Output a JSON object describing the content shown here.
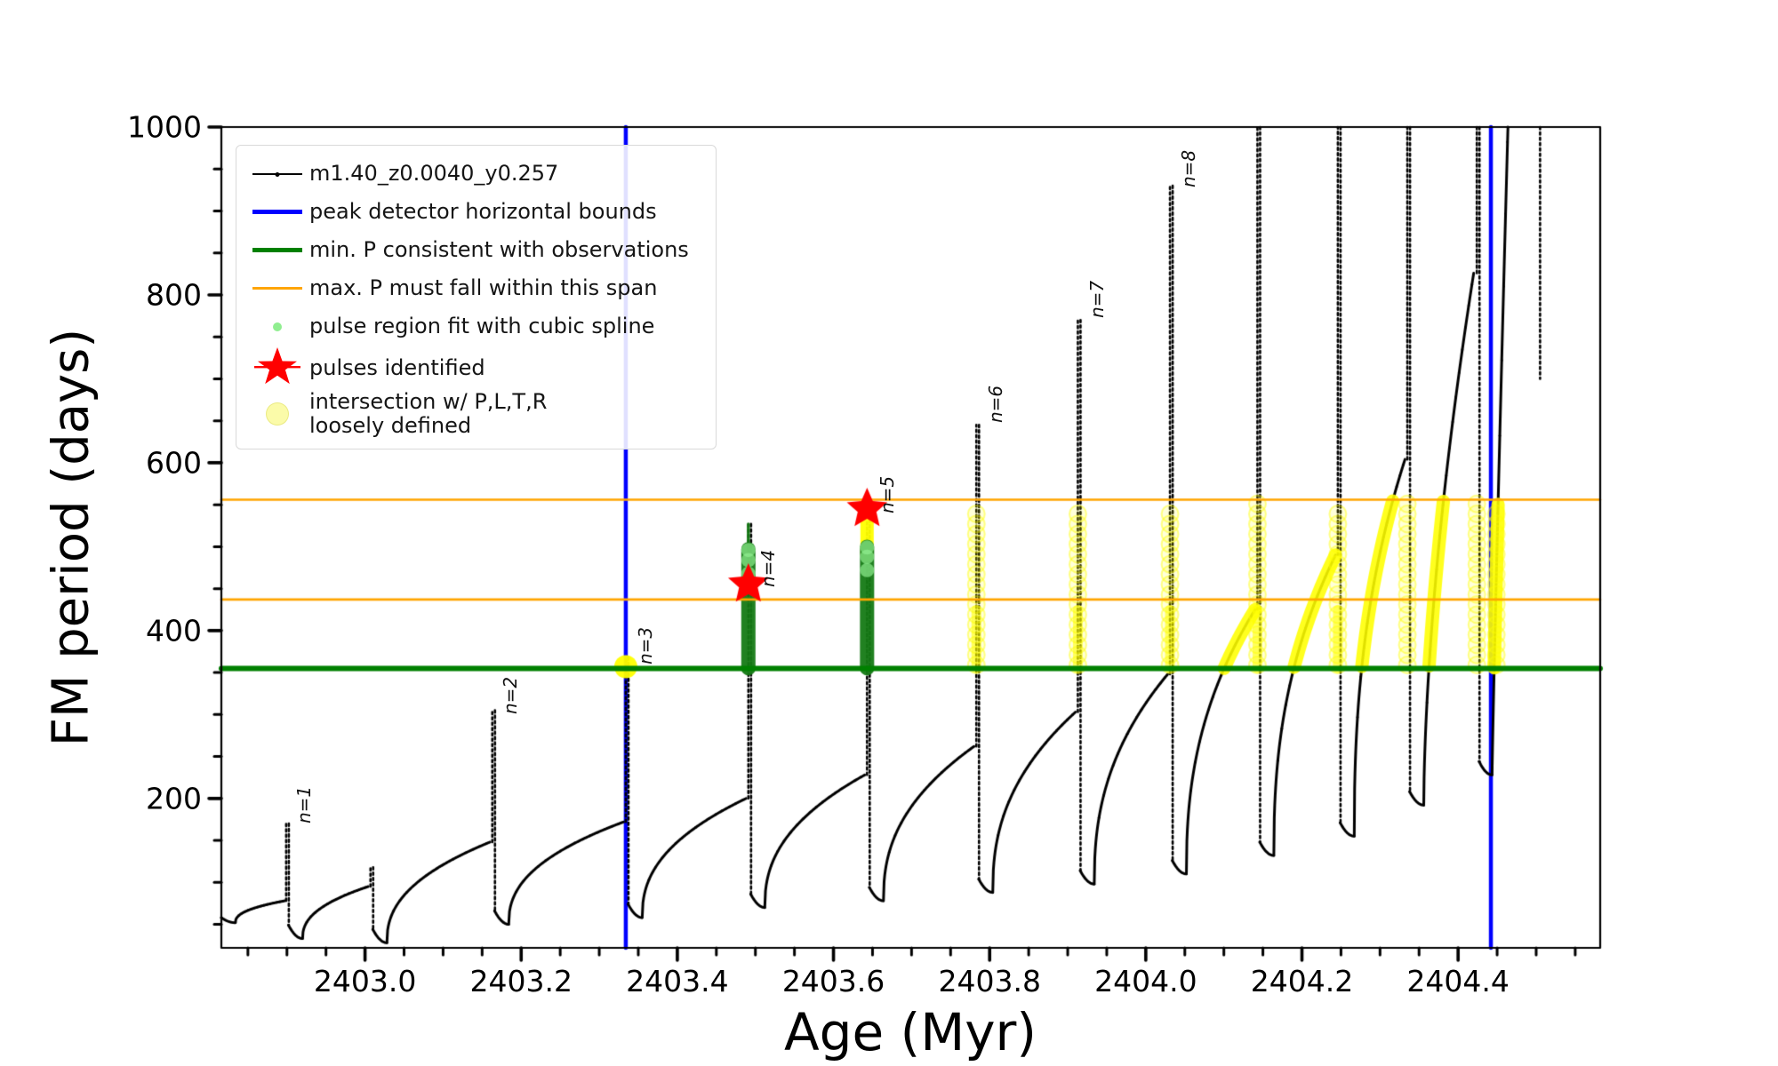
{
  "figure": {
    "background": "#ffffff"
  },
  "axes": {
    "xlabel": "Age (Myr)",
    "ylabel": "FM period (days)",
    "x_tick_labels": [
      "2403.0",
      "2403.2",
      "2403.4",
      "2403.6",
      "2403.8",
      "2404.0",
      "2404.2",
      "2404.4"
    ],
    "y_tick_labels": [
      "200",
      "400",
      "600",
      "800",
      "1000"
    ]
  },
  "legend": {
    "items": [
      {
        "label": "m1.40_z0.0040_y0.257",
        "marker": "black-line-dot"
      },
      {
        "label": "peak detector horizontal bounds",
        "marker": "blue-thick-line"
      },
      {
        "label": "min. P consistent with observations",
        "marker": "green-thick-line"
      },
      {
        "label": "max. P must fall within this span",
        "marker": "orange-thin-line"
      },
      {
        "label": "pulse region fit with cubic spline",
        "marker": "lightgreen-dot"
      },
      {
        "label": "pulses identified",
        "marker": "red-star"
      },
      {
        "label_line1": "intersection w/ P,L,T,R",
        "label_line2": "loosely defined",
        "marker": "yellow-circle"
      }
    ]
  },
  "chart_data": {
    "type": "line",
    "title": "",
    "xlabel": "Age (Myr)",
    "ylabel": "FM period (days)",
    "xlim": [
      2402.816,
      2404.582
    ],
    "ylim": [
      22,
      1000
    ],
    "grid": false,
    "legend_position": "upper left",
    "x_major_ticks": [
      2403.0,
      2403.2,
      2403.4,
      2403.6,
      2403.8,
      2404.0,
      2404.2,
      2404.4
    ],
    "x_minor_step": 0.05,
    "y_major_ticks": [
      200,
      400,
      600,
      800,
      1000
    ],
    "y_minor_step": 50,
    "series_label": "m1.40_z0.0040_y0.257",
    "peak_detector_bounds_x": [
      2403.334,
      2404.442
    ],
    "min_P_consistent_y": 355,
    "max_P_span_y": [
      437,
      556
    ],
    "pulses_identified": [
      {
        "x": 2403.491,
        "y": 455
      },
      {
        "x": 2403.643,
        "y": 545
      }
    ],
    "pulse_labels": [
      {
        "text": "n=1",
        "x": 2402.903,
        "y": 170
      },
      {
        "text": "n=2",
        "x": 2403.167,
        "y": 300
      },
      {
        "text": "n=3",
        "x": 2403.34,
        "y": 360
      },
      {
        "text": "n=4",
        "x": 2403.497,
        "y": 452
      },
      {
        "text": "n=5",
        "x": 2403.649,
        "y": 540
      },
      {
        "text": "n=6",
        "x": 2403.788,
        "y": 648
      },
      {
        "text": "n=7",
        "x": 2403.918,
        "y": 772
      },
      {
        "text": "n=8",
        "x": 2404.036,
        "y": 928
      }
    ],
    "curve_cycles": [
      {
        "min": 52,
        "crest_x": 2402.897,
        "crest": 78,
        "spike_x": 2402.899,
        "peak": 170
      },
      {
        "min": 33,
        "crest_x": 2403.004,
        "crest": 95,
        "spike_x": 2403.007,
        "peak": 118
      },
      {
        "min": 28,
        "crest_x": 2403.16,
        "crest": 148,
        "spike_x": 2403.163,
        "peak": 305
      },
      {
        "min": 50,
        "crest_x": 2403.331,
        "crest": 172,
        "spike_x": 2403.334,
        "peak": 368
      },
      {
        "min": 58,
        "crest_x": 2403.488,
        "crest": 200,
        "spike_x": 2403.491,
        "peak": 527
      },
      {
        "min": 70,
        "crest_x": 2403.64,
        "crest": 228,
        "spike_x": 2403.643,
        "peak": 532
      },
      {
        "min": 78,
        "crest_x": 2403.78,
        "crest": 262,
        "spike_x": 2403.783,
        "peak": 645
      },
      {
        "min": 88,
        "crest_x": 2403.91,
        "crest": 303,
        "spike_x": 2403.913,
        "peak": 770
      },
      {
        "min": 98,
        "crest_x": 2404.028,
        "crest": 348,
        "spike_x": 2404.031,
        "peak": 930
      },
      {
        "min": 110,
        "crest_x": 2404.14,
        "crest": 425,
        "spike_x": 2404.143,
        "peak": 1100,
        "clipped": true,
        "yellow": true
      },
      {
        "min": 132,
        "crest_x": 2404.243,
        "crest": 490,
        "spike_x": 2404.246,
        "peak": 1100,
        "clipped": true,
        "yellow": true
      },
      {
        "min": 155,
        "crest_x": 2404.332,
        "crest": 604,
        "spike_x": 2404.335,
        "peak": 1100,
        "clipped": true,
        "yellow": true
      },
      {
        "min": 192,
        "crest_x": 2404.42,
        "crest": 826,
        "spike_x": 2404.424,
        "peak": 1100,
        "clipped": true,
        "yellow": true,
        "p": 0.6
      },
      {
        "min": 228,
        "crest_x": 2404.482,
        "crest": 1600,
        "no_spike": true,
        "yellow": true,
        "p": 0.9
      },
      {
        "descent_only": true,
        "spike_x": 2404.505,
        "to": 700
      }
    ],
    "spline_fit_columns": [
      {
        "x": 2403.491,
        "y0": 355,
        "y1": 497,
        "thin_top": 527,
        "dots": [
          468,
          484,
          496
        ]
      },
      {
        "x": 2403.643,
        "y0": 355,
        "y1": 500,
        "thin_top": null,
        "dots": [
          472,
          488,
          499
        ]
      }
    ],
    "intersection_columns": [
      {
        "x": 2403.783,
        "y0": 355,
        "y1": 548,
        "bright_base": true
      },
      {
        "x": 2403.913,
        "y0": 355,
        "y1": 545,
        "bright_base": true
      },
      {
        "x": 2404.031,
        "y0": 355,
        "y1": 550,
        "bright_base": true
      },
      {
        "x": 2404.143,
        "y0": 355,
        "y1": 552,
        "bright_base": true
      },
      {
        "x": 2404.246,
        "y0": 355,
        "y1": 548,
        "bright_base": true
      },
      {
        "x": 2404.335,
        "y0": 355,
        "y1": 552,
        "bright_base": false
      },
      {
        "x": 2404.424,
        "y0": 355,
        "y1": 552,
        "bright_base": false
      },
      {
        "x": 2404.449,
        "y0": 355,
        "y1": 548,
        "bright_base": false
      }
    ],
    "intersection_dots": [
      {
        "x": 2403.334,
        "y": 357
      }
    ],
    "intersection_arc_cap": 556,
    "yellow_overlay_columns": [
      {
        "x": 2403.643,
        "y0": 490,
        "y1": 543
      }
    ],
    "colors": {
      "curve": "#000000",
      "peak_detector_bounds": "#0000ff",
      "min_P_line": "#008000",
      "max_P_lines": "#ffa500",
      "spline_column": "#157a15",
      "spline_dot": "#90ee90",
      "pulse_star": "#ff0000",
      "intersection": "#ffff00"
    }
  }
}
